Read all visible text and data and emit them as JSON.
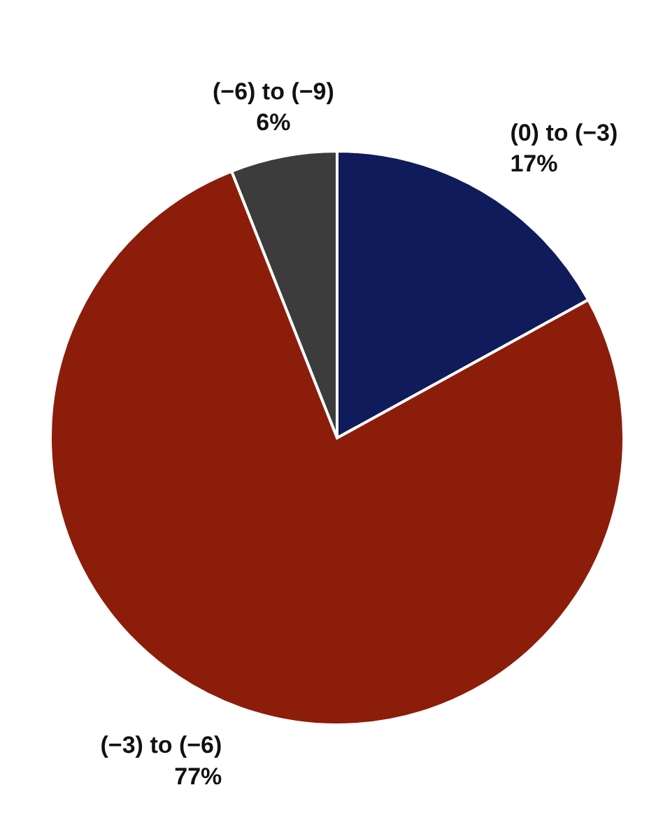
{
  "chart_data": {
    "type": "pie",
    "categories": [
      "(−6) to (−9)",
      "(0) to (−3)",
      "(−3) to (−6)"
    ],
    "values": [
      6,
      17,
      77
    ],
    "value_labels": [
      "6%",
      "17%",
      "77%"
    ],
    "colors": [
      "#3c3c3c",
      "#0f1b5a",
      "#8c1d0a"
    ],
    "legend": false
  }
}
